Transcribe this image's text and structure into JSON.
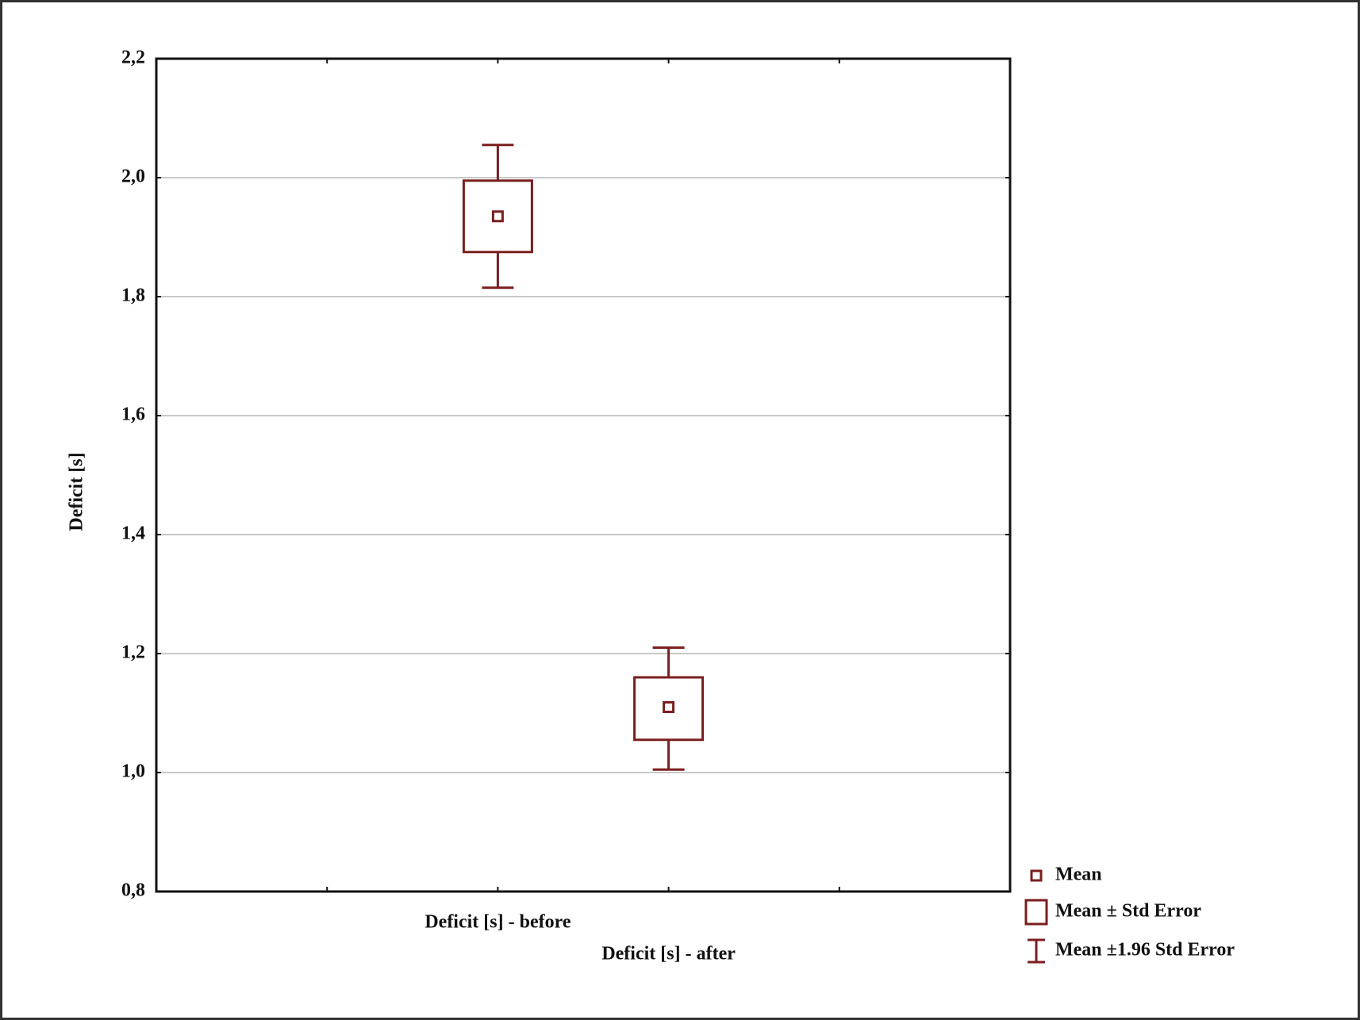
{
  "chart_data": {
    "type": "mean-error-box",
    "y_label": "Deficit [s]",
    "categories": [
      "Deficit [s] - before",
      "Deficit  [s] - after"
    ],
    "mean": [
      1.935,
      1.11
    ],
    "box_low": [
      1.875,
      1.055
    ],
    "box_high": [
      1.995,
      1.16
    ],
    "whisker_low": [
      1.815,
      1.005
    ],
    "whisker_high": [
      2.055,
      1.21
    ],
    "color": "#7a1f1f",
    "ylim": [
      0.8,
      2.2
    ],
    "yticks": [
      {
        "value": 0.8,
        "label": "0,8"
      },
      {
        "value": 1.0,
        "label": "1,0"
      },
      {
        "value": 1.2,
        "label": "1,2"
      },
      {
        "value": 1.4,
        "label": "1,4"
      },
      {
        "value": 1.6,
        "label": "1,6"
      },
      {
        "value": 1.8,
        "label": "1,8"
      },
      {
        "value": 2.0,
        "label": "2,0"
      },
      {
        "value": 2.2,
        "label": "2,2"
      }
    ],
    "grid": true,
    "legend": [
      "Mean",
      "Mean ± Std Error",
      "Mean ±1.96 Std Error"
    ]
  }
}
